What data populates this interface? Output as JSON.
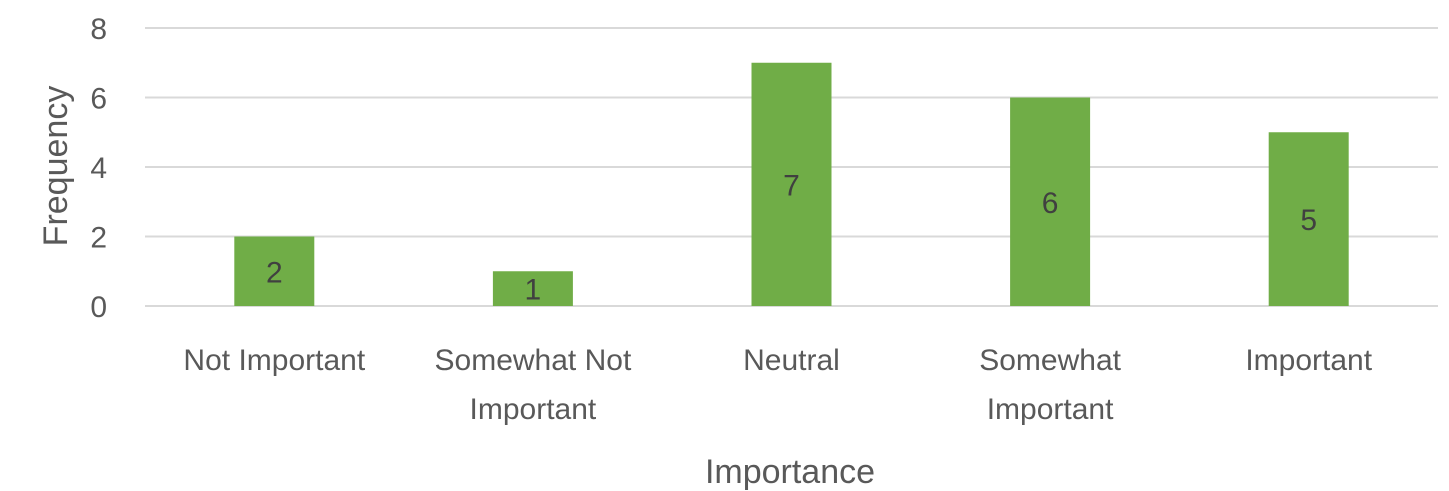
{
  "chart_data": {
    "type": "bar",
    "categories": [
      [
        "Not Important"
      ],
      [
        "Somewhat Not",
        "Important"
      ],
      [
        "Neutral"
      ],
      [
        "Somewhat",
        "Important"
      ],
      [
        "Important"
      ]
    ],
    "values": [
      2,
      1,
      7,
      6,
      5
    ],
    "data_labels": [
      "2",
      "1",
      "7",
      "6",
      "5"
    ],
    "title": "",
    "xlabel": "Importance",
    "ylabel": "Frequency",
    "ylim": [
      0,
      8
    ],
    "yticks": [
      0,
      2,
      4,
      6,
      8
    ],
    "grid": true,
    "legend": "none",
    "bar_color": "#70ad47"
  }
}
